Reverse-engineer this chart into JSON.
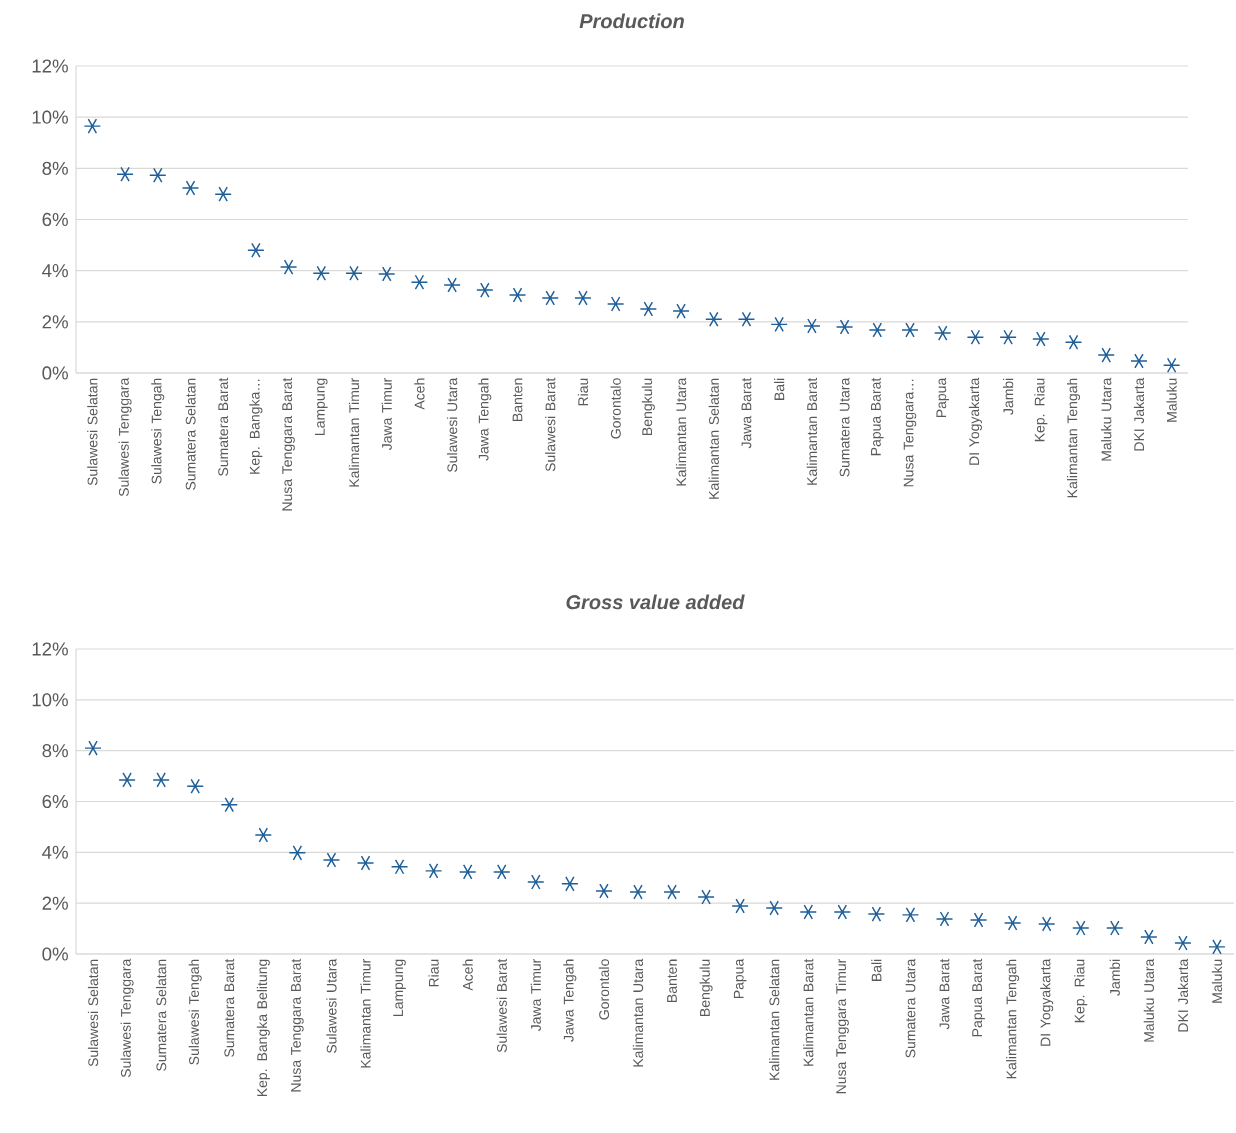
{
  "chart_data": [
    {
      "type": "scatter",
      "title": "Production",
      "categories": [
        "Sulawesi Selatan",
        "Sulawesi Tenggara",
        "Sulawesi Tengah",
        "Sumatera Selatan",
        "Sumatera Barat",
        "Kep. Bangka…",
        "Nusa Tenggara Barat",
        "Lampung",
        "Kalimantan Timur",
        "Jawa Timur",
        "Aceh",
        "Sulawesi Utara",
        "Jawa Tengah",
        "Banten",
        "Sulawesi Barat",
        "Riau",
        "Gorontalo",
        "Bengkulu",
        "Kalimantan Utara",
        "Kalimantan Selatan",
        "Jawa Barat",
        "Bali",
        "Kalimantan Barat",
        "Sumatera Utara",
        "Papua Barat",
        "Nusa Tenggara…",
        "Papua",
        "DI Yogyakarta",
        "Jambi",
        "Kep. Riau",
        "Kalimantan Tengah",
        "Maluku Utara",
        "DKI Jakarta",
        "Maluku"
      ],
      "series": [
        {
          "color": "#1f5f99",
          "values": [
            9.65,
            7.77,
            7.73,
            7.23,
            6.99,
            4.8,
            4.14,
            3.9,
            3.9,
            3.87,
            3.55,
            3.44,
            3.24,
            3.05,
            2.93,
            2.93,
            2.7,
            2.5,
            2.42,
            2.1,
            2.1,
            1.9,
            1.84,
            1.8,
            1.68,
            1.68,
            1.56,
            1.4,
            1.4,
            1.33,
            1.2,
            0.7,
            0.47,
            0.3
          ]
        }
      ],
      "ylim": [
        0,
        12
      ],
      "yticks": [
        {
          "value": 0,
          "label": "0%"
        },
        {
          "value": 2,
          "label": "2%"
        },
        {
          "value": 4,
          "label": "4%"
        },
        {
          "value": 6,
          "label": "6%"
        },
        {
          "value": 8,
          "label": "8%"
        },
        {
          "value": 10,
          "label": "10%"
        },
        {
          "value": 12,
          "label": "12%"
        }
      ],
      "grid": "y",
      "marker": "cross"
    },
    {
      "type": "scatter",
      "title": "Gross value added",
      "categories": [
        "Sulawesi Selatan",
        "Sulawesi Tenggara",
        "Sumatera Selatan",
        "Sulawesi Tengah",
        "Sumatera Barat",
        "Kep. Bangka Belitung",
        "Nusa Tenggara Barat",
        "Sulawesi Utara",
        "Kalimantan Timur",
        "Lampung",
        "Riau",
        "Aceh",
        "Sulawesi Barat",
        "Jawa Timur",
        "Jawa Tengah",
        "Gorontalo",
        "Kalimantan Utara",
        "Banten",
        "Bengkulu",
        "Papua",
        "Kalimantan Selatan",
        "Kalimantan Barat",
        "Nusa Tenggara Timur",
        "Bali",
        "Sumatera Utara",
        "Jawa Barat",
        "Papua Barat",
        "Kalimantan Tengah",
        "DI Yogyakarta",
        "Kep. Riau",
        "Jambi",
        "Maluku Utara",
        "DKI Jakarta",
        "Maluku"
      ],
      "series": [
        {
          "color": "#1f5f99",
          "values": [
            8.1,
            6.85,
            6.85,
            6.6,
            5.87,
            4.68,
            3.98,
            3.7,
            3.58,
            3.43,
            3.27,
            3.23,
            3.23,
            2.83,
            2.76,
            2.48,
            2.44,
            2.44,
            2.24,
            1.89,
            1.81,
            1.65,
            1.65,
            1.57,
            1.54,
            1.38,
            1.34,
            1.22,
            1.18,
            1.02,
            1.02,
            0.67,
            0.43,
            0.28
          ]
        }
      ],
      "ylim": [
        0,
        12
      ],
      "yticks": [
        {
          "value": 0,
          "label": "0%"
        },
        {
          "value": 2,
          "label": "2%"
        },
        {
          "value": 4,
          "label": "4%"
        },
        {
          "value": 6,
          "label": "6%"
        },
        {
          "value": 8,
          "label": "8%"
        },
        {
          "value": 10,
          "label": "10%"
        },
        {
          "value": 12,
          "label": "12%"
        }
      ],
      "grid": "y",
      "marker": "cross"
    }
  ]
}
